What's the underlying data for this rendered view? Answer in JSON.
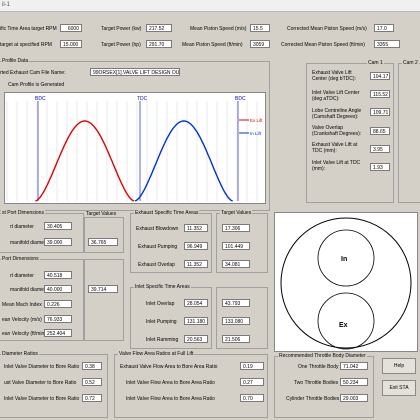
{
  "window": {
    "title": "il-1"
  },
  "top": {
    "time_area_rpm_label": "ific Time Area target RPM",
    "time_area_rpm_value": "6000",
    "power_rpm_label": "target at specified RPM",
    "power_rpm_value": "15.000",
    "target_power_kw_label": "Target Power (kw)",
    "target_power_kw_value": "217.52",
    "target_power_hp_label": "Target Power (hp)",
    "target_power_hp_value": "291.70",
    "mps_ms_label": "Mean Piston Speed (m/s)",
    "mps_ms_value": "15.5",
    "mps_ftmin_label": "Mean Piston Speed (ft/min)",
    "mps_ftmin_value": "3059",
    "cmps_ms_label": "Corrected Mean Piston Speed (m/s)",
    "cmps_ms_value": "17.0",
    "cmps_ftmin_label": "Corrected Mean Piston Speed (ft/min)",
    "cmps_ftmin_value": "3355"
  },
  "profile": {
    "section_label": "Profile Data",
    "file_label": "rted Exhaust Cam File Name:",
    "file_value": "99ORSEX[1].VALVE LIFT DESIGN OUTPUT.svl",
    "generated_label": "Cam Profile is Generated"
  },
  "chart": {
    "bdc_left": "BDC",
    "tdc": "TDC",
    "bdc_right": "BDC",
    "ex_lift": "Ex Lift",
    "in_lift": "In Lift"
  },
  "chart_data": {
    "type": "line",
    "x_axis_labels": [
      "BDC",
      "TDC",
      "BDC"
    ],
    "series": [
      {
        "name": "Ex Lift",
        "color": "#e00000",
        "x": [
          -48,
          46
        ],
        "peak_x": 254
      },
      {
        "name": "In Lift",
        "color": "#0030e0",
        "x": [
          352,
          546
        ],
        "peak_x": 464
      }
    ]
  },
  "cam1": {
    "title": "Cam 1",
    "ex_lift_center_label": "Exhaust Valve Lift Center (deg bTDC):",
    "ex_lift_center_value": "104.17",
    "in_lift_center_label": "Inlet Valve Lift Center (deg aTDC):",
    "in_lift_center_value": "115.52",
    "lsa_label": "Lobe Centreline Angle (Camshaft Degrees):",
    "lsa_value": "109.71",
    "overlap_label": "Valve Overlap (Crankshaft Degrees):",
    "overlap_value": "88.65",
    "ex_tdc_label": "Exhaust Valve Lift at TDC (mm):",
    "ex_tdc_value": "3.95",
    "in_tdc_label": "Inlet Valve Lift at TDC (mm):",
    "in_tdc_value": "1.93"
  },
  "cam2": {
    "title": "Cam 2"
  },
  "exhaust_port": {
    "title": "st Port Dimensions",
    "port_diameter_label": "rt diameter",
    "port_diameter_value": "30.405",
    "manifold_diameter_label": "manifold diameter",
    "manifold_diameter_value": "39.000",
    "target_label": "Target Values",
    "target_value": "36.765"
  },
  "inlet_port": {
    "title": "Port Dimensions",
    "port_diameter_label": "rt diameter",
    "port_diameter_value": "40.518",
    "manifold_diameter_label": "manifold diameter",
    "manifold_diameter_value": "40.000",
    "mach_label": "Mean Mach Index",
    "mach_value": "0.226",
    "velocity_ms_label": "ean Velocity (m/s)",
    "velocity_ms_value": "76.933",
    "velocity_ftmin_label": "ean Velocity (ft/min)",
    "velocity_ftmin_value": "252.404",
    "target_value": "39.714"
  },
  "ex_time_areas": {
    "title": "Exhaust Specific Time Areas",
    "blowdown_label": "Exhaust Blowdown",
    "blowdown_value": "11.352",
    "pumping_label": "Exhaust Pumping",
    "pumping_value": "96.949",
    "overlap_label": "Exhaust Overlap",
    "overlap_value": "11.352"
  },
  "ex_targets": {
    "title": "Target Values",
    "blowdown": "17.306",
    "pumping": "101.449",
    "overlap": "34.081"
  },
  "in_time_areas": {
    "title": "Inlet Specific Time Areas",
    "overlap_label": "Inlet Overlap",
    "overlap_value": "28.054",
    "pumping_label": "Inlet Pumping",
    "pumping_value": "131.180",
    "ramming_label": "Inlet Ramming",
    "ramming_value": "20.563"
  },
  "in_targets": {
    "overlap": "43.793",
    "pumping": "133.080",
    "ramming": "21.506"
  },
  "bore": {
    "in_label": "In",
    "ex_label": "Ex"
  },
  "diam_ratios": {
    "title": "Diameter Ratios",
    "in_label": "Inlet Valve Diameter to Bore Ratio",
    "in_value": "0.38",
    "ex_label": "ust Valve Diameter to Bore Ratio",
    "ex_value": "0.52",
    "ratio_label": "Inlet Valve Diameter to Bore Ratio",
    "ratio_value": "0.72"
  },
  "flow_ratios": {
    "title": "Valve Flow Area Ratios at Full Lift",
    "ex_label": "Exhaust Valve Flow Area to Bore Area Ratio",
    "ex_value": "0.19",
    "in_label": "Inlet Valve Flow Area to Bore Area Ratio",
    "in_value": "0.27",
    "ratio_label": "Inlet Valve Flow Area to Bore Area Ratio",
    "ratio_value": "0.70"
  },
  "throttle": {
    "title": "Recommended Throttle Body Diameter",
    "one_label": "One Throttle Body",
    "one_value": "71.042",
    "two_label": "Two Throttle Bodies",
    "two_value": "50.234",
    "cyl_label": "Cylinder Throttle Bodies",
    "cyl_value": "29.003"
  },
  "buttons": {
    "help": "Help",
    "exit": "Exit STA"
  }
}
